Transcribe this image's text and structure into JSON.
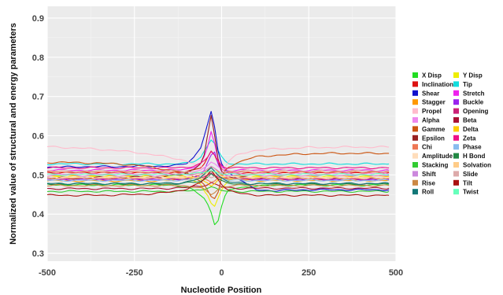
{
  "chart_data": {
    "type": "line",
    "title": "",
    "xlabel": "Nucleotide Position",
    "ylabel": "Normalized value of structural and energy parameters",
    "xlim": [
      -500,
      500
    ],
    "ylim": [
      0.28,
      0.93
    ],
    "xticks": [
      -500,
      -250,
      0,
      250,
      500
    ],
    "xtick_labels": [
      "-500",
      "-250",
      "0",
      "250",
      "500"
    ],
    "yticks": [
      0.3,
      0.4,
      0.5,
      0.6,
      0.7,
      0.8,
      0.9
    ],
    "ytick_labels": [
      "0.3",
      "0.4",
      "0.5",
      "0.6",
      "0.7",
      "0.8",
      "0.9"
    ],
    "grid": true,
    "background": "#ebebeb",
    "legend_position": "right",
    "x": [
      -500,
      -450,
      -400,
      -350,
      -300,
      -250,
      -200,
      -150,
      -120,
      -100,
      -80,
      -60,
      -50,
      -40,
      -30,
      -20,
      -10,
      0,
      10,
      20,
      40,
      60,
      80,
      100,
      150,
      200,
      250,
      300,
      350,
      400,
      450,
      480
    ],
    "series": [
      {
        "name": "X Disp",
        "color": "#22dd22",
        "values": [
          0.475,
          0.475,
          0.474,
          0.474,
          0.474,
          0.474,
          0.474,
          0.474,
          0.472,
          0.468,
          0.46,
          0.448,
          0.44,
          0.425,
          0.405,
          0.375,
          0.385,
          0.42,
          0.445,
          0.46,
          0.466,
          0.468,
          0.47,
          0.472,
          0.473,
          0.474,
          0.474,
          0.474,
          0.474,
          0.474,
          0.474,
          0.474
        ]
      },
      {
        "name": "Y Disp",
        "color": "#eeee00",
        "values": [
          0.496,
          0.496,
          0.496,
          0.496,
          0.496,
          0.496,
          0.496,
          0.495,
          0.494,
          0.49,
          0.485,
          0.475,
          0.46,
          0.45,
          0.43,
          0.42,
          0.44,
          0.46,
          0.475,
          0.485,
          0.49,
          0.493,
          0.494,
          0.495,
          0.495,
          0.496,
          0.496,
          0.496,
          0.496,
          0.496,
          0.496,
          0.496
        ]
      },
      {
        "name": "Inclination",
        "color": "#dd1111",
        "values": [
          0.506,
          0.506,
          0.506,
          0.506,
          0.506,
          0.506,
          0.505,
          0.505,
          0.506,
          0.508,
          0.512,
          0.52,
          0.53,
          0.545,
          0.56,
          0.55,
          0.53,
          0.515,
          0.508,
          0.506,
          0.505,
          0.505,
          0.505,
          0.505,
          0.505,
          0.506,
          0.506,
          0.506,
          0.506,
          0.506,
          0.506,
          0.506
        ]
      },
      {
        "name": "Tip",
        "color": "#11dddd",
        "values": [
          0.528,
          0.528,
          0.528,
          0.528,
          0.528,
          0.528,
          0.528,
          0.528,
          0.528,
          0.53,
          0.535,
          0.545,
          0.56,
          0.575,
          0.59,
          0.58,
          0.56,
          0.545,
          0.535,
          0.53,
          0.528,
          0.528,
          0.528,
          0.528,
          0.528,
          0.528,
          0.528,
          0.528,
          0.528,
          0.528,
          0.528,
          0.528
        ]
      },
      {
        "name": "Shear",
        "color": "#1111cc",
        "values": [
          0.52,
          0.52,
          0.521,
          0.521,
          0.521,
          0.522,
          0.522,
          0.523,
          0.525,
          0.53,
          0.545,
          0.57,
          0.6,
          0.63,
          0.66,
          0.62,
          0.56,
          0.53,
          0.515,
          0.505,
          0.495,
          0.485,
          0.47,
          0.462,
          0.46,
          0.461,
          0.462,
          0.462,
          0.462,
          0.462,
          0.462,
          0.462
        ]
      },
      {
        "name": "Stretch",
        "color": "#ee22ee",
        "values": [
          0.512,
          0.512,
          0.512,
          0.512,
          0.512,
          0.512,
          0.512,
          0.512,
          0.513,
          0.515,
          0.52,
          0.53,
          0.545,
          0.57,
          0.61,
          0.58,
          0.54,
          0.52,
          0.514,
          0.512,
          0.512,
          0.512,
          0.512,
          0.512,
          0.512,
          0.512,
          0.512,
          0.512,
          0.512,
          0.512,
          0.512,
          0.512
        ]
      },
      {
        "name": "Stagger",
        "color": "#ff9900",
        "values": [
          0.485,
          0.485,
          0.485,
          0.485,
          0.485,
          0.485,
          0.485,
          0.486,
          0.488,
          0.49,
          0.494,
          0.5,
          0.506,
          0.512,
          0.52,
          0.515,
          0.508,
          0.5,
          0.494,
          0.49,
          0.488,
          0.487,
          0.486,
          0.486,
          0.486,
          0.486,
          0.486,
          0.486,
          0.486,
          0.486,
          0.486,
          0.486
        ]
      },
      {
        "name": "Buckle",
        "color": "#9922ee",
        "values": [
          0.488,
          0.488,
          0.488,
          0.488,
          0.488,
          0.488,
          0.488,
          0.488,
          0.489,
          0.49,
          0.494,
          0.5,
          0.51,
          0.53,
          0.55,
          0.56,
          0.53,
          0.51,
          0.5,
          0.494,
          0.491,
          0.49,
          0.489,
          0.488,
          0.488,
          0.488,
          0.488,
          0.488,
          0.488,
          0.488,
          0.488,
          0.488
        ]
      },
      {
        "name": "Propel",
        "color": "#ffbbcc",
        "values": [
          0.572,
          0.57,
          0.568,
          0.565,
          0.562,
          0.558,
          0.552,
          0.545,
          0.54,
          0.535,
          0.528,
          0.52,
          0.515,
          0.51,
          0.505,
          0.5,
          0.498,
          0.505,
          0.52,
          0.535,
          0.548,
          0.555,
          0.56,
          0.563,
          0.566,
          0.568,
          0.57,
          0.57,
          0.571,
          0.571,
          0.571,
          0.571
        ]
      },
      {
        "name": "Opening",
        "color": "#cc2277",
        "values": [
          0.49,
          0.49,
          0.49,
          0.49,
          0.49,
          0.49,
          0.49,
          0.49,
          0.49,
          0.491,
          0.492,
          0.494,
          0.496,
          0.5,
          0.505,
          0.5,
          0.496,
          0.493,
          0.491,
          0.49,
          0.49,
          0.49,
          0.49,
          0.49,
          0.49,
          0.49,
          0.49,
          0.49,
          0.49,
          0.49,
          0.49,
          0.49
        ]
      },
      {
        "name": "Alpha",
        "color": "#ee88ee",
        "values": [
          0.503,
          0.503,
          0.503,
          0.503,
          0.503,
          0.503,
          0.503,
          0.503,
          0.504,
          0.505,
          0.508,
          0.512,
          0.518,
          0.525,
          0.535,
          0.53,
          0.52,
          0.512,
          0.507,
          0.505,
          0.504,
          0.503,
          0.503,
          0.503,
          0.503,
          0.503,
          0.503,
          0.503,
          0.503,
          0.503,
          0.503,
          0.503
        ]
      },
      {
        "name": "Beta",
        "color": "#aa1133",
        "values": [
          0.465,
          0.465,
          0.465,
          0.465,
          0.465,
          0.465,
          0.465,
          0.466,
          0.467,
          0.468,
          0.47,
          0.472,
          0.474,
          0.476,
          0.48,
          0.476,
          0.473,
          0.47,
          0.468,
          0.467,
          0.466,
          0.466,
          0.466,
          0.466,
          0.466,
          0.466,
          0.466,
          0.466,
          0.466,
          0.466,
          0.466,
          0.466
        ]
      },
      {
        "name": "Gamme",
        "color": "#cc5511",
        "values": [
          0.532,
          0.532,
          0.531,
          0.53,
          0.528,
          0.525,
          0.52,
          0.512,
          0.508,
          0.503,
          0.496,
          0.485,
          0.475,
          0.46,
          0.445,
          0.44,
          0.455,
          0.49,
          0.51,
          0.52,
          0.53,
          0.536,
          0.542,
          0.546,
          0.55,
          0.552,
          0.554,
          0.555,
          0.555,
          0.555,
          0.555,
          0.555
        ]
      },
      {
        "name": "Delta",
        "color": "#ffcc00",
        "values": [
          0.498,
          0.498,
          0.498,
          0.498,
          0.498,
          0.498,
          0.498,
          0.498,
          0.497,
          0.496,
          0.494,
          0.49,
          0.485,
          0.48,
          0.47,
          0.475,
          0.485,
          0.492,
          0.496,
          0.497,
          0.498,
          0.498,
          0.498,
          0.498,
          0.498,
          0.498,
          0.498,
          0.498,
          0.498,
          0.498,
          0.498,
          0.498
        ]
      },
      {
        "name": "Epsilon",
        "color": "#992222",
        "values": [
          0.492,
          0.492,
          0.492,
          0.493,
          0.493,
          0.494,
          0.495,
          0.497,
          0.5,
          0.505,
          0.515,
          0.53,
          0.55,
          0.6,
          0.65,
          0.6,
          0.54,
          0.51,
          0.5,
          0.496,
          0.494,
          0.493,
          0.492,
          0.492,
          0.492,
          0.492,
          0.492,
          0.492,
          0.492,
          0.492,
          0.492,
          0.492
        ]
      },
      {
        "name": "Zeta",
        "color": "#ee1188",
        "values": [
          0.518,
          0.518,
          0.518,
          0.518,
          0.518,
          0.518,
          0.518,
          0.518,
          0.519,
          0.52,
          0.523,
          0.528,
          0.535,
          0.545,
          0.56,
          0.55,
          0.535,
          0.525,
          0.52,
          0.519,
          0.518,
          0.518,
          0.518,
          0.518,
          0.518,
          0.518,
          0.518,
          0.518,
          0.518,
          0.518,
          0.518,
          0.518
        ]
      },
      {
        "name": "Chi",
        "color": "#ee7755",
        "values": [
          0.507,
          0.507,
          0.507,
          0.507,
          0.507,
          0.507,
          0.507,
          0.506,
          0.505,
          0.503,
          0.5,
          0.495,
          0.49,
          0.485,
          0.48,
          0.485,
          0.495,
          0.502,
          0.505,
          0.506,
          0.507,
          0.507,
          0.507,
          0.507,
          0.507,
          0.507,
          0.507,
          0.507,
          0.507,
          0.507,
          0.507,
          0.507
        ]
      },
      {
        "name": "Phase",
        "color": "#88bbee",
        "values": [
          0.486,
          0.486,
          0.486,
          0.486,
          0.486,
          0.486,
          0.486,
          0.486,
          0.487,
          0.488,
          0.49,
          0.494,
          0.5,
          0.51,
          0.52,
          0.512,
          0.5,
          0.492,
          0.489,
          0.487,
          0.486,
          0.486,
          0.486,
          0.486,
          0.486,
          0.486,
          0.486,
          0.486,
          0.486,
          0.486,
          0.486,
          0.486
        ]
      },
      {
        "name": "Amplitude",
        "color": "#ffddbb",
        "values": [
          0.494,
          0.494,
          0.494,
          0.494,
          0.494,
          0.494,
          0.494,
          0.494,
          0.494,
          0.495,
          0.497,
          0.5,
          0.503,
          0.507,
          0.51,
          0.505,
          0.5,
          0.497,
          0.495,
          0.494,
          0.494,
          0.494,
          0.494,
          0.494,
          0.494,
          0.494,
          0.494,
          0.494,
          0.494,
          0.494,
          0.494,
          0.494
        ]
      },
      {
        "name": "H Bond",
        "color": "#228844",
        "values": [
          0.477,
          0.477,
          0.477,
          0.477,
          0.477,
          0.477,
          0.477,
          0.477,
          0.478,
          0.479,
          0.481,
          0.484,
          0.488,
          0.495,
          0.505,
          0.498,
          0.49,
          0.484,
          0.48,
          0.478,
          0.477,
          0.477,
          0.477,
          0.477,
          0.477,
          0.477,
          0.477,
          0.477,
          0.477,
          0.477,
          0.477,
          0.477
        ]
      },
      {
        "name": "Stacking",
        "color": "#33cc33",
        "values": [
          0.458,
          0.458,
          0.458,
          0.458,
          0.458,
          0.458,
          0.458,
          0.458,
          0.458,
          0.459,
          0.46,
          0.462,
          0.465,
          0.468,
          0.47,
          0.466,
          0.462,
          0.46,
          0.459,
          0.458,
          0.458,
          0.458,
          0.458,
          0.458,
          0.458,
          0.458,
          0.458,
          0.458,
          0.458,
          0.458,
          0.458,
          0.458
        ]
      },
      {
        "name": "Solvation",
        "color": "#ffcc88",
        "values": [
          0.492,
          0.492,
          0.492,
          0.492,
          0.492,
          0.492,
          0.492,
          0.492,
          0.492,
          0.493,
          0.494,
          0.497,
          0.5,
          0.505,
          0.51,
          0.505,
          0.5,
          0.496,
          0.494,
          0.493,
          0.492,
          0.492,
          0.492,
          0.492,
          0.492,
          0.492,
          0.492,
          0.492,
          0.492,
          0.492,
          0.492,
          0.492
        ]
      },
      {
        "name": "Shift",
        "color": "#cc88dd",
        "values": [
          0.499,
          0.499,
          0.499,
          0.499,
          0.499,
          0.499,
          0.499,
          0.499,
          0.5,
          0.501,
          0.503,
          0.506,
          0.51,
          0.516,
          0.522,
          0.515,
          0.508,
          0.503,
          0.501,
          0.5,
          0.499,
          0.499,
          0.499,
          0.499,
          0.499,
          0.499,
          0.499,
          0.499,
          0.499,
          0.499,
          0.499,
          0.499
        ]
      },
      {
        "name": "Slide",
        "color": "#ddaaaa",
        "values": [
          0.51,
          0.51,
          0.51,
          0.51,
          0.51,
          0.51,
          0.51,
          0.51,
          0.51,
          0.509,
          0.507,
          0.504,
          0.5,
          0.495,
          0.49,
          0.495,
          0.502,
          0.507,
          0.509,
          0.51,
          0.51,
          0.51,
          0.51,
          0.51,
          0.51,
          0.51,
          0.51,
          0.51,
          0.51,
          0.51,
          0.51,
          0.51
        ]
      },
      {
        "name": "Rise",
        "color": "#cc8844",
        "values": [
          0.473,
          0.473,
          0.473,
          0.473,
          0.473,
          0.473,
          0.473,
          0.473,
          0.473,
          0.472,
          0.47,
          0.466,
          0.462,
          0.456,
          0.45,
          0.455,
          0.463,
          0.468,
          0.471,
          0.472,
          0.473,
          0.473,
          0.473,
          0.473,
          0.473,
          0.473,
          0.473,
          0.473,
          0.473,
          0.473,
          0.473,
          0.473
        ]
      },
      {
        "name": "Tilt",
        "color": "#aa1111",
        "values": [
          0.448,
          0.448,
          0.448,
          0.448,
          0.449,
          0.45,
          0.452,
          0.456,
          0.46,
          0.465,
          0.472,
          0.48,
          0.49,
          0.5,
          0.51,
          0.5,
          0.49,
          0.478,
          0.468,
          0.46,
          0.455,
          0.452,
          0.45,
          0.449,
          0.448,
          0.448,
          0.448,
          0.448,
          0.448,
          0.448,
          0.448,
          0.448
        ]
      },
      {
        "name": "Roll",
        "color": "#117777",
        "values": [
          0.478,
          0.478,
          0.478,
          0.478,
          0.478,
          0.478,
          0.478,
          0.479,
          0.48,
          0.482,
          0.486,
          0.492,
          0.5,
          0.51,
          0.52,
          0.512,
          0.5,
          0.492,
          0.486,
          0.482,
          0.48,
          0.479,
          0.478,
          0.478,
          0.478,
          0.478,
          0.478,
          0.478,
          0.478,
          0.478,
          0.478,
          0.478
        ]
      },
      {
        "name": "Twist",
        "color": "#66ffbb",
        "values": [
          0.501,
          0.501,
          0.501,
          0.501,
          0.501,
          0.501,
          0.501,
          0.501,
          0.501,
          0.502,
          0.503,
          0.505,
          0.507,
          0.51,
          0.512,
          0.508,
          0.505,
          0.503,
          0.502,
          0.501,
          0.501,
          0.501,
          0.501,
          0.501,
          0.501,
          0.501,
          0.501,
          0.501,
          0.501,
          0.501,
          0.501,
          0.501
        ]
      }
    ]
  }
}
